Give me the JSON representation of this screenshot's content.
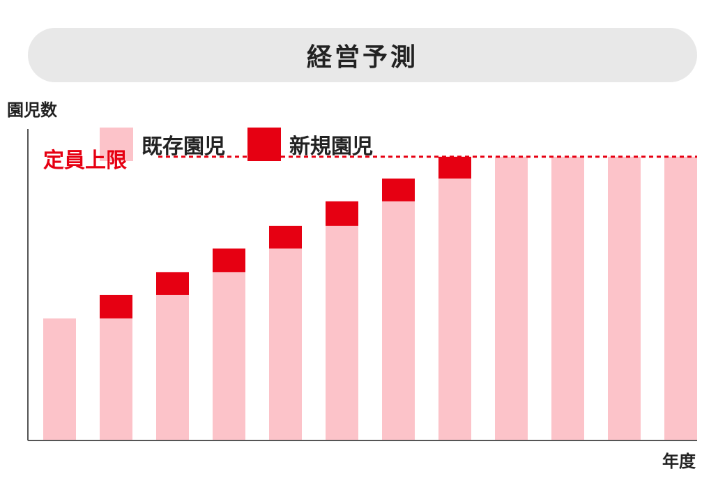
{
  "title": "経営予測",
  "colors": {
    "existing": "#fcc3c9",
    "new": "#e60012",
    "capacity": "#e60012",
    "axis": "#555555",
    "title_bg": "#e8e8e8"
  },
  "chart_data": {
    "type": "bar",
    "stacked": true,
    "ylabel": "園児数",
    "xlabel": "年度",
    "categories": [
      "",
      "",
      "",
      "",
      "",
      "",
      "",
      "",
      "",
      "",
      "",
      ""
    ],
    "series": [
      {
        "name": "既存園児",
        "values": [
          145,
          145,
          173,
          200,
          228,
          255,
          284,
          311,
          337,
          337,
          337,
          337
        ]
      },
      {
        "name": "新規園児",
        "values": [
          0,
          28,
          27,
          28,
          27,
          29,
          27,
          26,
          0,
          0,
          0,
          0
        ]
      }
    ],
    "capacity": {
      "label": "定員上限",
      "value": 337,
      "style": "dashed"
    },
    "ylim": [
      0,
      370
    ],
    "legend_position": "top-left",
    "grid": false
  }
}
